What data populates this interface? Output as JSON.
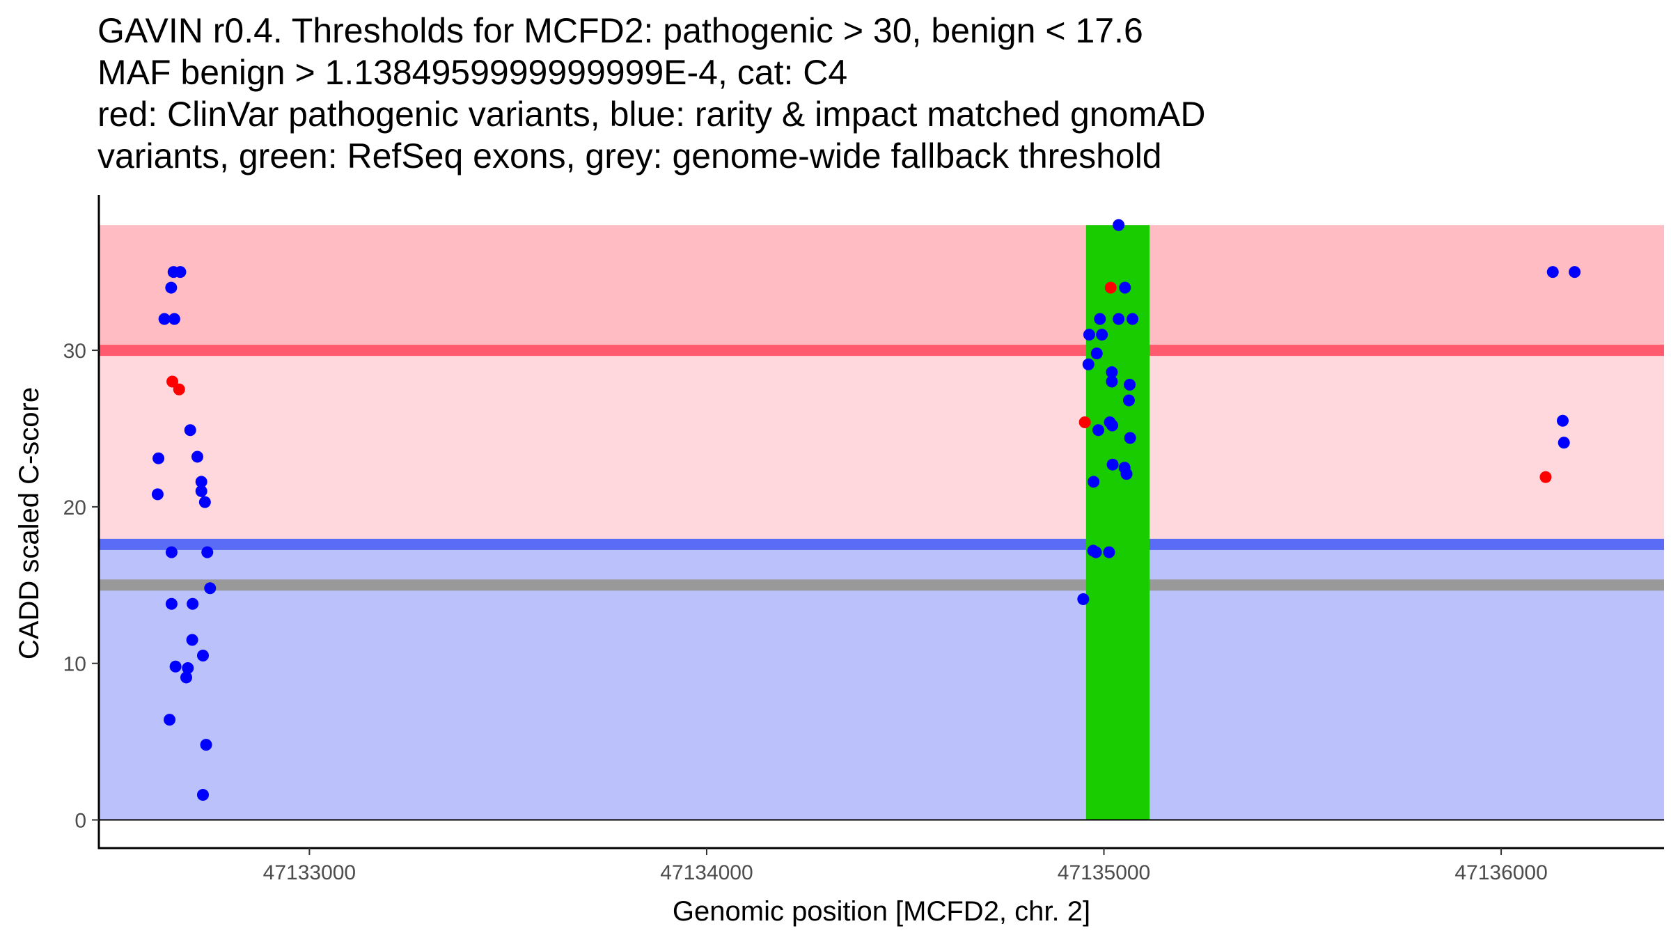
{
  "chart_data": {
    "type": "scatter",
    "title_lines": [
      "GAVIN r0.4. Thresholds for MCFD2: pathogenic > 30, benign < 17.6",
      "MAF benign > 1.1384959999999999E-4, cat: C4",
      "red: ClinVar pathogenic variants, blue: rarity & impact matched gnomAD",
      "variants, green: RefSeq exons, grey: genome-wide fallback threshold"
    ],
    "xlabel": "Genomic position [MCFD2, chr. 2]",
    "ylabel": "CADD scaled C-score",
    "xlim": [
      47132470,
      47136410
    ],
    "ylim": [
      -1.8,
      39.7
    ],
    "x_ticks": [
      47133000,
      47134000,
      47135000,
      47136000
    ],
    "x_tick_labels": [
      "47133000",
      "47134000",
      "47135000",
      "47136000"
    ],
    "y_ticks": [
      0,
      10,
      20,
      30
    ],
    "y_tick_labels": [
      "0",
      "10",
      "20",
      "30"
    ],
    "thresholds": {
      "pathogenic": 30,
      "benign": 17.6,
      "fallback": 15
    },
    "bands": [
      {
        "name": "pathogenic-zone",
        "ymin": 30,
        "ymax": 38,
        "color": "#ffbcc2"
      },
      {
        "name": "middle-zone",
        "ymin": 17.6,
        "ymax": 30,
        "color": "#ffd8dd"
      },
      {
        "name": "benign-zone",
        "ymin": 0,
        "ymax": 17.6,
        "color": "#bbc1fa"
      }
    ],
    "lines": [
      {
        "name": "pathogenic-threshold-line",
        "y": 30,
        "color": "#ff5a6e"
      },
      {
        "name": "benign-threshold-line",
        "y": 17.6,
        "color": "#5a6cf5"
      },
      {
        "name": "fallback-threshold-line",
        "y": 15,
        "color": "#999999"
      }
    ],
    "exons": [
      {
        "xmin": 47134955,
        "xmax": 47135115,
        "ymin": 0,
        "ymax": 38,
        "color": "#19cc00"
      }
    ],
    "colors": {
      "clinvar": "#ff0000",
      "gnomad": "#0000ff"
    },
    "series": [
      {
        "name": "ClinVar pathogenic",
        "color": "#ff0000",
        "points": [
          [
            47132655,
            28.0
          ],
          [
            47132672,
            27.5
          ],
          [
            47134952,
            25.4
          ],
          [
            47135017,
            34.0
          ],
          [
            47136112,
            21.9
          ]
        ]
      },
      {
        "name": "gnomAD matched",
        "color": "#0000ff",
        "points": [
          [
            47132652,
            34.0
          ],
          [
            47132658,
            35.0
          ],
          [
            47132675,
            35.0
          ],
          [
            47132635,
            32.0
          ],
          [
            47132660,
            32.0
          ],
          [
            47132620,
            23.1
          ],
          [
            47132618,
            20.8
          ],
          [
            47132700,
            24.9
          ],
          [
            47132718,
            23.2
          ],
          [
            47132728,
            21.6
          ],
          [
            47132728,
            21.0
          ],
          [
            47132737,
            20.3
          ],
          [
            47132653,
            17.1
          ],
          [
            47132743,
            17.1
          ],
          [
            47132750,
            14.8
          ],
          [
            47132653,
            13.8
          ],
          [
            47132706,
            13.8
          ],
          [
            47132705,
            11.5
          ],
          [
            47132732,
            10.5
          ],
          [
            47132663,
            9.8
          ],
          [
            47132694,
            9.7
          ],
          [
            47132690,
            9.1
          ],
          [
            47132648,
            6.4
          ],
          [
            47132740,
            4.8
          ],
          [
            47132732,
            1.6
          ],
          [
            47135037,
            38.0
          ],
          [
            47135053,
            34.0
          ],
          [
            47134990,
            32.0
          ],
          [
            47135037,
            32.0
          ],
          [
            47135072,
            32.0
          ],
          [
            47134963,
            31.0
          ],
          [
            47134995,
            31.0
          ],
          [
            47134982,
            29.8
          ],
          [
            47134961,
            29.1
          ],
          [
            47135020,
            28.6
          ],
          [
            47135020,
            28.0
          ],
          [
            47135065,
            27.8
          ],
          [
            47135063,
            26.8
          ],
          [
            47135015,
            25.4
          ],
          [
            47135021,
            25.2
          ],
          [
            47134986,
            24.9
          ],
          [
            47135066,
            24.4
          ],
          [
            47135022,
            22.7
          ],
          [
            47135052,
            22.5
          ],
          [
            47135057,
            22.1
          ],
          [
            47134974,
            21.6
          ],
          [
            47134973,
            17.2
          ],
          [
            47134980,
            17.1
          ],
          [
            47135013,
            17.1
          ],
          [
            47134948,
            14.1
          ],
          [
            47136130,
            35.0
          ],
          [
            47136185,
            35.0
          ],
          [
            47136155,
            25.5
          ],
          [
            47136158,
            24.1
          ]
        ]
      }
    ]
  }
}
